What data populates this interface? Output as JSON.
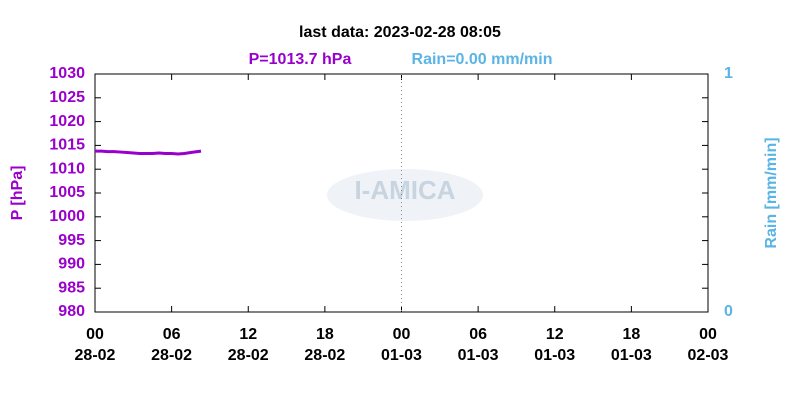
{
  "chart_data": {
    "type": "line",
    "title": "last data: 2023-02-28 08:05",
    "current_labels": [
      {
        "text": "P=1013.7 hPa",
        "color": "#9900cc"
      },
      {
        "text": "Rain=0.00 mm/min",
        "color": "#5ab4e5"
      }
    ],
    "ylabel": "P [hPa]",
    "y2label": "Rain [mm/min]",
    "watermark": "I-AMICA",
    "x": [
      0,
      0.5,
      1,
      1.5,
      2,
      2.5,
      3,
      3.5,
      4,
      4.5,
      5,
      5.5,
      6,
      6.5,
      7,
      7.5,
      8,
      8.3
    ],
    "series": [
      {
        "name": "P",
        "color": "#9900cc",
        "values": [
          1013.8,
          1013.8,
          1013.7,
          1013.7,
          1013.6,
          1013.5,
          1013.4,
          1013.3,
          1013.3,
          1013.3,
          1013.4,
          1013.3,
          1013.3,
          1013.2,
          1013.3,
          1013.5,
          1013.7,
          1013.8
        ]
      }
    ],
    "xlim": [
      0,
      48
    ],
    "xticks": [
      {
        "value": 0,
        "label": [
          "00",
          "28-02"
        ]
      },
      {
        "value": 6,
        "label": [
          "06",
          "28-02"
        ]
      },
      {
        "value": 12,
        "label": [
          "12",
          "28-02"
        ]
      },
      {
        "value": 18,
        "label": [
          "18",
          "28-02"
        ]
      },
      {
        "value": 24,
        "label": [
          "00",
          "01-03"
        ]
      },
      {
        "value": 30,
        "label": [
          "06",
          "01-03"
        ]
      },
      {
        "value": 36,
        "label": [
          "12",
          "01-03"
        ]
      },
      {
        "value": 42,
        "label": [
          "18",
          "01-03"
        ]
      },
      {
        "value": 48,
        "label": [
          "00",
          "02-03"
        ]
      }
    ],
    "vlines": [
      24
    ],
    "ylim": [
      980,
      1030
    ],
    "yticks": [
      980,
      985,
      990,
      995,
      1000,
      1005,
      1010,
      1015,
      1020,
      1025,
      1030
    ],
    "y_color": "#9900cc",
    "y2lim": [
      0,
      1
    ],
    "y2ticks": [
      0,
      1
    ],
    "y2_color": "#5ab4e5"
  }
}
